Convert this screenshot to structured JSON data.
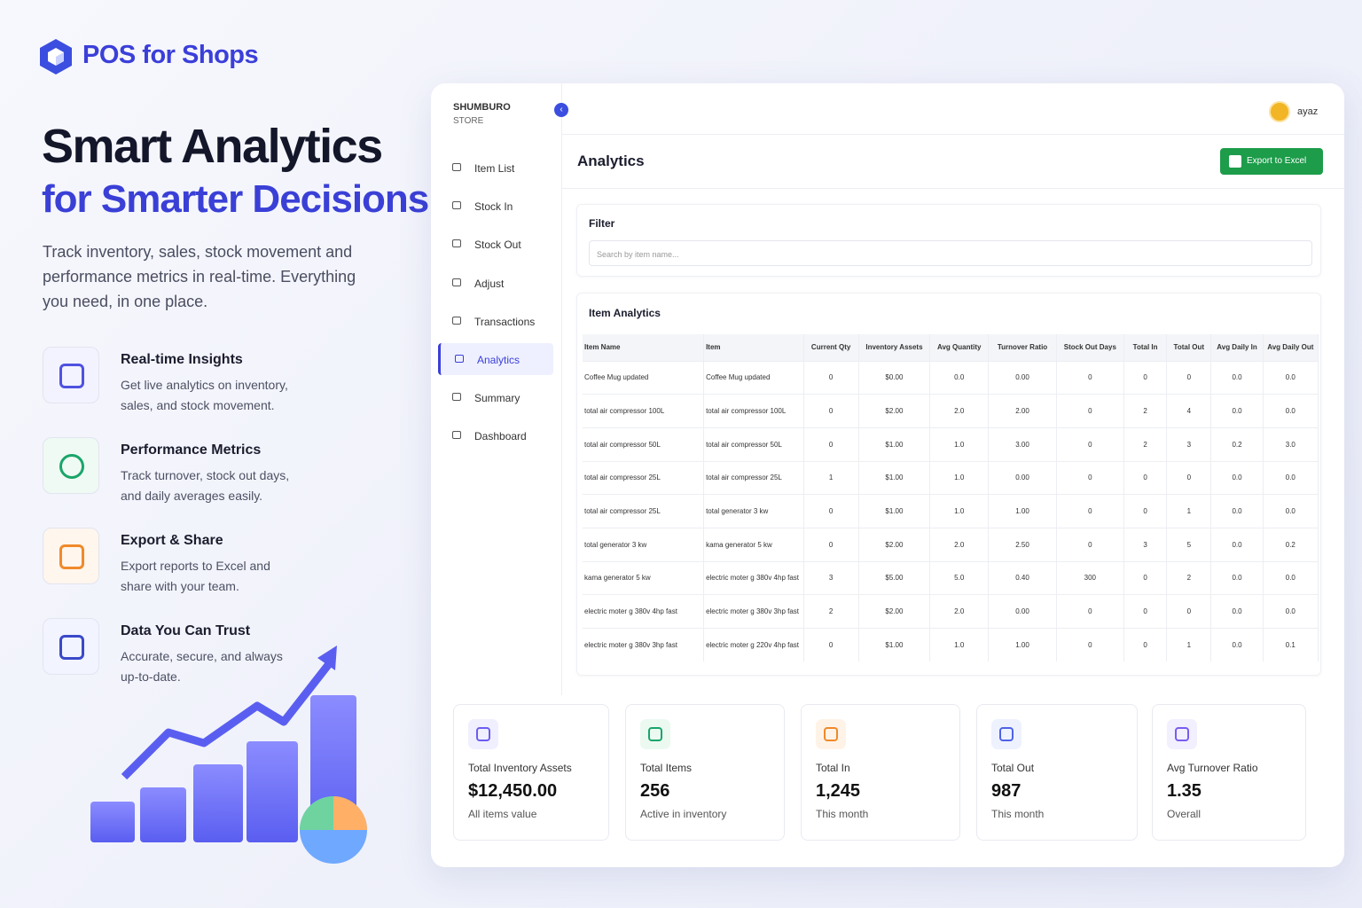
{
  "brand": "POS for Shops",
  "hero": {
    "title": "Smart Analytics",
    "subtitle": "for Smarter Decisions",
    "description": "Track inventory, sales, stock movement and performance metrics in real-time. Everything you need, in one place."
  },
  "features": [
    {
      "title": "Real-time Insights",
      "text": "Get live analytics on inventory, sales, and stock movement."
    },
    {
      "title": "Performance Metrics",
      "text": "Track turnover, stock out days, and daily averages easily."
    },
    {
      "title": "Export & Share",
      "text": "Export reports to Excel and share with your team."
    },
    {
      "title": "Data You Can Trust",
      "text": "Accurate, secure, and always up-to-date."
    }
  ],
  "app": {
    "store_name": "SHUMBURO",
    "store_type": "STORE",
    "user": "ayaz",
    "nav": [
      "Item List",
      "Stock In",
      "Stock Out",
      "Adjust",
      "Transactions",
      "Analytics",
      "Summary",
      "Dashboard"
    ],
    "active_nav": 5,
    "page_title": "Analytics",
    "export_button": "Export to Excel",
    "filter": {
      "title": "Filter",
      "placeholder": "Search by item name..."
    },
    "table": {
      "title": "Item Analytics",
      "columns": [
        "Item Name",
        "Item",
        "Current Qty",
        "Inventory Assets",
        "Avg Quantity",
        "Turnover Ratio",
        "Stock Out Days",
        "Total In",
        "Total Out",
        "Avg Daily In",
        "Avg Daily Out"
      ],
      "rows": [
        [
          "Coffee Mug updated",
          "Coffee Mug updated",
          "0",
          "$0.00",
          "0.0",
          "0.00",
          "0",
          "0",
          "0",
          "0.0",
          "0.0"
        ],
        [
          "total air compressor 100L",
          "total air compressor 100L",
          "0",
          "$2.00",
          "2.0",
          "2.00",
          "0",
          "2",
          "4",
          "0.0",
          "0.0"
        ],
        [
          "total air compressor 50L",
          "total air compressor 50L",
          "0",
          "$1.00",
          "1.0",
          "3.00",
          "0",
          "2",
          "3",
          "0.2",
          "3.0"
        ],
        [
          "total air compressor 25L",
          "total air compressor 25L",
          "1",
          "$1.00",
          "1.0",
          "0.00",
          "0",
          "0",
          "0",
          "0.0",
          "0.0"
        ],
        [
          "total air compressor 25L",
          "total generator 3 kw",
          "0",
          "$1.00",
          "1.0",
          "1.00",
          "0",
          "0",
          "1",
          "0.0",
          "0.0"
        ],
        [
          "total generator 3 kw",
          "kama generator 5 kw",
          "0",
          "$2.00",
          "2.0",
          "2.50",
          "0",
          "3",
          "5",
          "0.0",
          "0.2"
        ],
        [
          "kama generator 5 kw",
          "electric moter g 380v 4hp fast",
          "3",
          "$5.00",
          "5.0",
          "0.40",
          "300",
          "0",
          "2",
          "0.0",
          "0.0"
        ],
        [
          "electric moter g 380v 4hp fast",
          "electric moter g 380v 3hp fast",
          "2",
          "$2.00",
          "2.0",
          "0.00",
          "0",
          "0",
          "0",
          "0.0",
          "0.0"
        ],
        [
          "electric moter g 380v 3hp fast",
          "electric moter g 220v 4hp fast",
          "0",
          "$1.00",
          "1.0",
          "1.00",
          "0",
          "0",
          "1",
          "0.0",
          "0.1"
        ]
      ]
    },
    "stats": [
      {
        "label": "Total Inventory Assets",
        "value": "$12,450.00",
        "note": "All items value"
      },
      {
        "label": "Total Items",
        "value": "256",
        "note": "Active in inventory"
      },
      {
        "label": "Total In",
        "value": "1,245",
        "note": "This month"
      },
      {
        "label": "Total Out",
        "value": "987",
        "note": "This month"
      },
      {
        "label": "Avg Turnover Ratio",
        "value": "1.35",
        "note": "Overall"
      }
    ]
  }
}
